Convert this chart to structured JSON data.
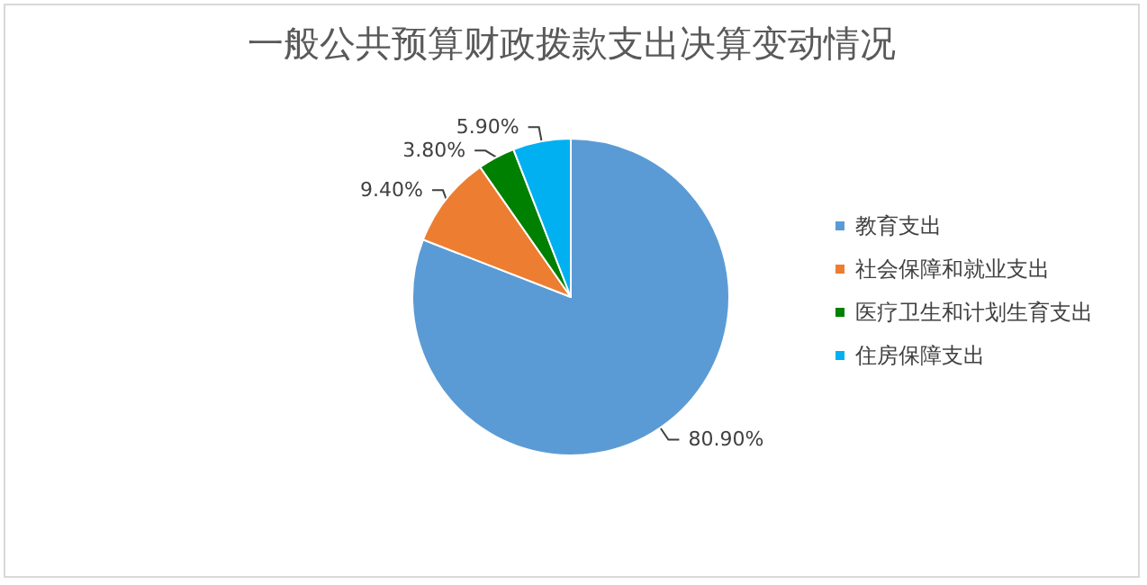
{
  "chart_data": {
    "type": "pie",
    "title": "一般公共预算财政拨款支出决算变动情况",
    "categories": [
      "教育支出",
      "社会保障和就业支出",
      "医疗卫生和计划生育支出",
      "住房保障支出"
    ],
    "values": [
      80.9,
      9.4,
      3.8,
      5.9
    ],
    "colors": [
      "#5b9bd5",
      "#ed7d31",
      "#008000",
      "#00b0f0"
    ],
    "value_labels": [
      "80.90%",
      "9.40%",
      "3.80%",
      "5.90%"
    ],
    "legend": "right"
  }
}
